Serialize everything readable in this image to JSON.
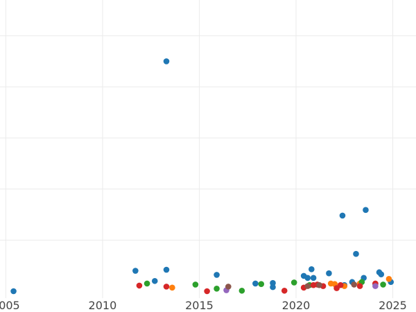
{
  "chart_data": {
    "type": "scatter",
    "title": "",
    "xlabel": "",
    "ylabel": "",
    "grid": true,
    "legend": "none",
    "xlim": [
      2004.7,
      2026.2
    ],
    "ylim": [
      0,
      57
    ],
    "x_ticks": [
      2005,
      2010,
      2015,
      2020,
      2025
    ],
    "x_tick_labels": [
      "2005",
      "2010",
      "2015",
      "2020",
      "2025"
    ],
    "y_grid_values": [
      10,
      20,
      30,
      40,
      50
    ],
    "series": [
      {
        "color": "#1f77b4",
        "points": [
          [
            2005.4,
            0.0
          ],
          [
            2011.7,
            4.0
          ],
          [
            2012.7,
            2.0
          ],
          [
            2013.3,
            4.2
          ],
          [
            2013.3,
            45.0
          ],
          [
            2015.9,
            3.2
          ],
          [
            2017.9,
            1.5
          ],
          [
            2018.8,
            1.6
          ],
          [
            2018.8,
            0.8
          ],
          [
            2020.4,
            3.0
          ],
          [
            2020.6,
            2.6
          ],
          [
            2020.8,
            4.3
          ],
          [
            2020.9,
            2.6
          ],
          [
            2021.7,
            3.5
          ],
          [
            2022.4,
            14.8
          ],
          [
            2022.5,
            1.2
          ],
          [
            2022.9,
            1.8
          ],
          [
            2023.1,
            7.3
          ],
          [
            2023.5,
            2.6
          ],
          [
            2023.6,
            15.9
          ],
          [
            2024.1,
            1.4
          ],
          [
            2024.3,
            3.7
          ],
          [
            2024.4,
            3.3
          ],
          [
            2024.9,
            1.8
          ]
        ]
      },
      {
        "color": "#ff7f0e",
        "points": [
          [
            2013.6,
            0.7
          ],
          [
            2021.8,
            1.5
          ],
          [
            2022.0,
            1.4
          ],
          [
            2022.5,
            1.0
          ],
          [
            2023.3,
            1.5
          ],
          [
            2024.8,
            2.4
          ]
        ]
      },
      {
        "color": "#2ca02c",
        "points": [
          [
            2012.3,
            1.5
          ],
          [
            2014.8,
            1.3
          ],
          [
            2015.9,
            0.5
          ],
          [
            2017.2,
            0.1
          ],
          [
            2018.2,
            1.4
          ],
          [
            2019.9,
            1.7
          ],
          [
            2020.7,
            1.2
          ],
          [
            2023.4,
            1.8
          ],
          [
            2024.5,
            1.3
          ]
        ]
      },
      {
        "color": "#d62728",
        "points": [
          [
            2011.9,
            1.1
          ],
          [
            2013.3,
            0.9
          ],
          [
            2015.4,
            0.0
          ],
          [
            2019.4,
            0.1
          ],
          [
            2020.4,
            0.7
          ],
          [
            2020.9,
            1.2
          ],
          [
            2021.1,
            1.3
          ],
          [
            2021.4,
            1.0
          ],
          [
            2022.1,
            0.6
          ],
          [
            2022.3,
            1.2
          ],
          [
            2023.3,
            1.0
          ],
          [
            2024.1,
            1.5
          ]
        ]
      },
      {
        "color": "#9467bd",
        "points": [
          [
            2016.4,
            0.2
          ],
          [
            2024.1,
            1.0
          ]
        ]
      },
      {
        "color": "#8c564b",
        "points": [
          [
            2016.5,
            0.9
          ],
          [
            2020.6,
            1.0
          ],
          [
            2021.2,
            1.2
          ],
          [
            2023.0,
            1.3
          ]
        ]
      }
    ]
  }
}
